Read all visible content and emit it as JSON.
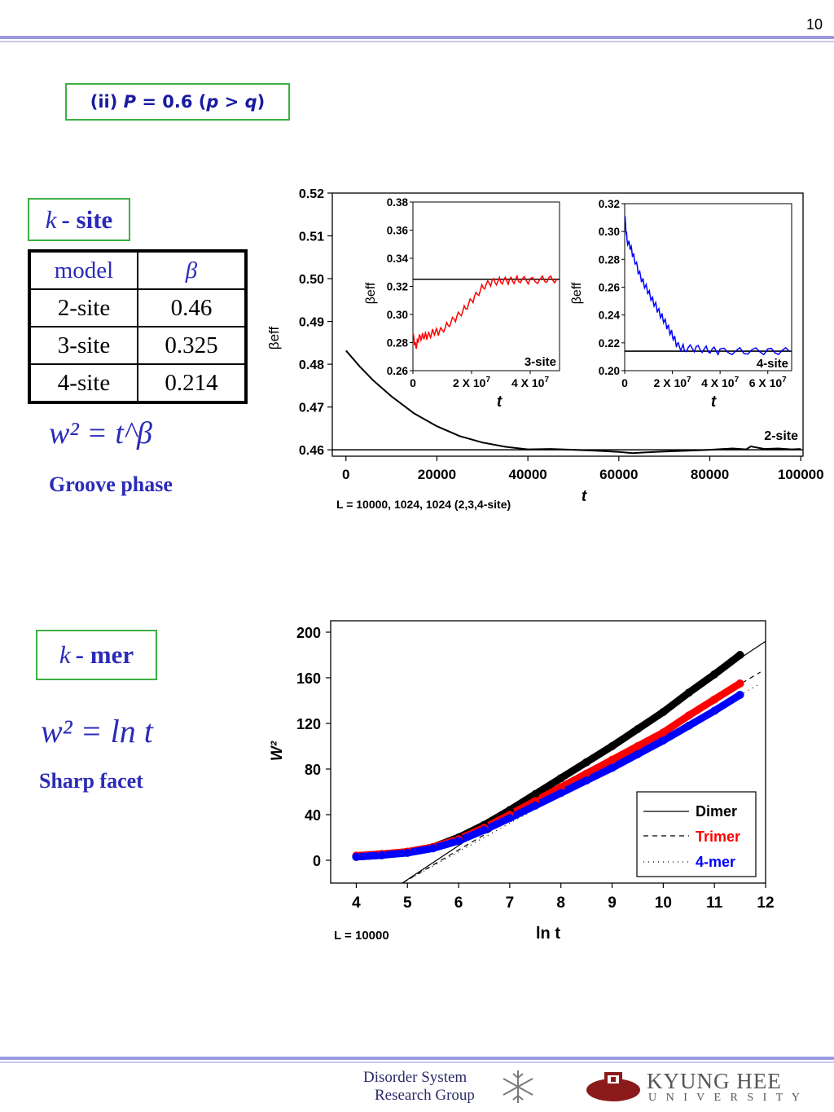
{
  "page_number": "10",
  "heading": {
    "prefix": "(ii) ",
    "P": "P",
    "eq": " = 0.6 (",
    "p": "p",
    "gt": " > ",
    "q": "q",
    "close": ")"
  },
  "ksite": {
    "label_k": "k",
    "label_rest": "- site",
    "table": {
      "header": [
        "model",
        "β"
      ],
      "rows": [
        [
          "2-site",
          "0.46"
        ],
        [
          "3-site",
          "0.325"
        ],
        [
          "4-site",
          "0.214"
        ]
      ]
    },
    "formula": "w² = t^β",
    "phase": "Groove phase"
  },
  "kmer": {
    "label_k": "k",
    "label_rest": "- mer",
    "formula": "w² = ln t",
    "phase": "Sharp facet"
  },
  "chart_data": [
    {
      "type": "line",
      "ylabel": "βeff",
      "xlabel": "t",
      "xlim": [
        -3000,
        100500
      ],
      "ylim": [
        0.4585,
        0.52
      ],
      "xticks": [
        0,
        20000,
        40000,
        60000,
        80000,
        100000
      ],
      "yticks": [
        0.46,
        0.47,
        0.48,
        0.49,
        0.5,
        0.51,
        0.52
      ],
      "annotation": "L = 10000, 1024, 1024 (2,3,4-site)",
      "series": [
        {
          "name": "2-site",
          "color": "#000000",
          "x": [
            0,
            3000,
            6000,
            10000,
            15000,
            20000,
            25000,
            30000,
            35000,
            40000,
            45000,
            50000,
            55000,
            60000,
            63000,
            66000,
            70000,
            75000,
            80000,
            85000,
            88000,
            89000,
            90000,
            92000,
            95000,
            98000,
            100000
          ],
          "y": [
            0.4832,
            0.4795,
            0.4762,
            0.4725,
            0.4685,
            0.4655,
            0.4632,
            0.4617,
            0.4607,
            0.4601,
            0.4602,
            0.46,
            0.4598,
            0.4595,
            0.4592,
            0.4594,
            0.4596,
            0.4598,
            0.46,
            0.4603,
            0.4601,
            0.4608,
            0.4606,
            0.4602,
            0.4603,
            0.4601,
            0.4602
          ]
        }
      ],
      "reference_line": 0.46,
      "insets": [
        {
          "title": "3-site",
          "ylabel": "βeff",
          "xlabel": "t",
          "color": "#ff0000",
          "ylim": [
            0.26,
            0.38
          ],
          "yticks": [
            0.26,
            0.28,
            0.3,
            0.32,
            0.34,
            0.36,
            0.38
          ],
          "xlim": [
            0,
            50000000
          ],
          "xtick_values": [
            0,
            20000000,
            40000000
          ],
          "xtick_labels": [
            "0",
            "2 X 10",
            "4 X 10"
          ],
          "xtick_exp": [
            "",
            "7",
            "7"
          ],
          "reference_line": 0.325,
          "x": [
            0,
            1000000,
            2000000,
            3500000,
            5000000,
            7000000,
            9000000,
            12000000,
            15000000,
            18000000,
            21000000,
            24000000,
            27000000,
            30000000,
            33000000,
            36000000,
            40000000,
            45000000,
            49000000
          ],
          "y": [
            0.285,
            0.277,
            0.283,
            0.285,
            0.284,
            0.288,
            0.287,
            0.293,
            0.298,
            0.305,
            0.312,
            0.32,
            0.323,
            0.324,
            0.324,
            0.325,
            0.324,
            0.325,
            0.325
          ]
        },
        {
          "title": "4-site",
          "ylabel": "βeff",
          "xlabel": "t",
          "color": "#0000ff",
          "ylim": [
            0.2,
            0.32
          ],
          "yticks": [
            0.2,
            0.22,
            0.24,
            0.26,
            0.28,
            0.3,
            0.32
          ],
          "xlim": [
            0,
            70000000
          ],
          "xtick_values": [
            0,
            20000000,
            40000000,
            60000000
          ],
          "xtick_labels": [
            "0",
            "2 X 10",
            "4 X 10",
            "6 X 10"
          ],
          "xtick_exp": [
            "",
            "7",
            "7",
            "7"
          ],
          "reference_line": 0.214,
          "x": [
            0,
            1000000,
            2500000,
            4000000,
            6000000,
            8000000,
            10000000,
            12000000,
            14000000,
            16000000,
            18000000,
            20000000,
            22000000,
            25000000,
            30000000,
            35000000,
            40000000,
            50000000,
            60000000,
            69000000
          ],
          "y": [
            0.311,
            0.294,
            0.288,
            0.281,
            0.27,
            0.263,
            0.256,
            0.25,
            0.243,
            0.238,
            0.231,
            0.226,
            0.218,
            0.216,
            0.216,
            0.215,
            0.214,
            0.214,
            0.214,
            0.214
          ]
        }
      ]
    },
    {
      "type": "scatter",
      "ylabel": "W²",
      "xlabel": "ln t",
      "xlim": [
        3.5,
        12
      ],
      "ylim": [
        -20,
        210
      ],
      "xticks": [
        4,
        5,
        6,
        7,
        8,
        9,
        10,
        11,
        12
      ],
      "yticks": [
        0,
        40,
        80,
        120,
        160,
        200
      ],
      "annotation": "L = 10000",
      "legend": {
        "position": "bottom-right",
        "entries": [
          "Dimer",
          "Trimer",
          "4-mer"
        ]
      },
      "series": [
        {
          "name": "Dimer",
          "color": "#000000",
          "line_style": "solid",
          "x": [
            4.0,
            4.5,
            5.0,
            5.5,
            6.0,
            6.5,
            7.0,
            7.5,
            8.0,
            8.5,
            9.0,
            9.5,
            10.0,
            10.5,
            11.0,
            11.5
          ],
          "y": [
            3.0,
            4.5,
            7.0,
            11.5,
            20.0,
            31.0,
            44.0,
            58.0,
            72.0,
            86.0,
            100.0,
            115.0,
            130.0,
            147.0,
            163.0,
            180.0
          ],
          "fit": {
            "x": [
              4.9,
              12.0
            ],
            "y": [
              -20.0,
              192.0
            ]
          }
        },
        {
          "name": "Trimer",
          "color": "#ff0000",
          "line_style": "dashed",
          "x": [
            4.0,
            4.5,
            5.0,
            5.5,
            6.0,
            6.5,
            7.0,
            7.5,
            8.0,
            8.5,
            9.0,
            9.5,
            10.0,
            10.5,
            11.0,
            11.5
          ],
          "y": [
            4.0,
            5.5,
            7.5,
            11.5,
            18.5,
            28.5,
            40.0,
            52.0,
            64.0,
            76.0,
            88.0,
            100.0,
            112.0,
            127.0,
            141.0,
            155.0
          ],
          "fit": {
            "x": [
              4.9,
              11.9
            ],
            "y": [
              -20.0,
              165.0
            ]
          }
        },
        {
          "name": "4-mer",
          "color": "#0000ff",
          "line_style": "dotted",
          "x": [
            4.0,
            4.5,
            5.0,
            5.5,
            6.0,
            6.5,
            7.0,
            7.5,
            8.0,
            8.5,
            9.0,
            9.5,
            10.0,
            10.5,
            11.0,
            11.5
          ],
          "y": [
            3.0,
            4.5,
            6.5,
            10.5,
            17.0,
            26.5,
            37.0,
            48.0,
            59.0,
            70.0,
            81.0,
            93.0,
            105.0,
            118.0,
            131.0,
            145.0
          ],
          "fit": {
            "x": [
              4.9,
              11.9
            ],
            "y": [
              -20.0,
              155.0
            ]
          }
        }
      ]
    }
  ],
  "footer": {
    "group_line1": "Disorder System",
    "group_line2": "Research Group",
    "university": "KYUNG HEE",
    "university_sub": "U N I V E R S I T Y"
  }
}
